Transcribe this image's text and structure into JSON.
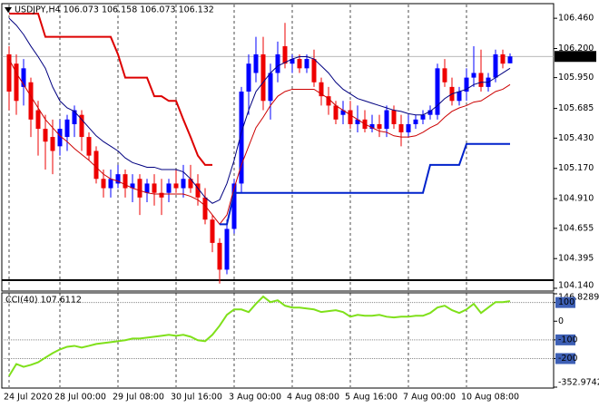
{
  "chart_data": [
    {
      "type": "candlestick",
      "title": "USDJPY,H4  106.073 106.158 106.073 106.132",
      "categories": [
        "24 Jul 2020",
        null,
        null,
        null,
        null,
        null,
        null,
        "28 Jul 00:00",
        null,
        null,
        null,
        null,
        null,
        null,
        null,
        "29 Jul 08:00",
        null,
        null,
        null,
        null,
        null,
        null,
        null,
        "30 Jul 16:00",
        null,
        null,
        null,
        null,
        null,
        null,
        null,
        "3 Aug 00:00",
        null,
        null,
        null,
        null,
        null,
        null,
        null,
        "4 Aug 08:00",
        null,
        null,
        null,
        null,
        null,
        null,
        null,
        "5 Aug 16:00",
        null,
        null,
        null,
        null,
        null,
        null,
        null,
        "7 Aug 00:00",
        null,
        null,
        null,
        null,
        null,
        null,
        null,
        "10 Aug 08:00",
        null,
        null,
        null,
        null,
        null,
        null
      ],
      "open": [
        106.15,
        106.07,
        105.87,
        105.91,
        105.67,
        105.51,
        105.44,
        105.36,
        105.44,
        105.55,
        105.63,
        105.44,
        105.32,
        105.08,
        105.0,
        105.04,
        105.12,
        105.0,
        105.08,
        104.96,
        105.04,
        104.96,
        104.96,
        105.04,
        105.0,
        105.08,
        105.04,
        104.92,
        104.73,
        104.53,
        104.3,
        104.65,
        105.04,
        105.83,
        105.99,
        106.15,
        105.75,
        105.99,
        106.22,
        106.07,
        106.11,
        106.03,
        106.11,
        105.91,
        105.79,
        105.71,
        105.63,
        105.67,
        105.55,
        105.59,
        105.51,
        105.55,
        105.51,
        105.67,
        105.55,
        105.48,
        105.55,
        105.59,
        105.63,
        105.63,
        106.03,
        105.87,
        105.75,
        105.83,
        105.95,
        105.99,
        105.87,
        105.95,
        106.15,
        106.073
      ],
      "high": [
        106.22,
        106.15,
        106.11,
        105.95,
        105.75,
        105.63,
        105.59,
        105.59,
        105.63,
        105.71,
        105.67,
        105.48,
        105.36,
        105.16,
        105.16,
        105.2,
        105.16,
        105.12,
        105.12,
        105.08,
        105.12,
        105.08,
        105.08,
        105.16,
        105.2,
        105.2,
        105.12,
        105.0,
        104.77,
        104.57,
        104.73,
        105.08,
        105.87,
        106.15,
        106.3,
        106.3,
        106.07,
        106.26,
        106.42,
        106.15,
        106.15,
        106.15,
        106.19,
        105.95,
        105.87,
        105.75,
        105.75,
        105.75,
        105.71,
        105.67,
        105.63,
        105.63,
        105.71,
        105.71,
        105.63,
        105.63,
        105.63,
        105.67,
        105.71,
        106.07,
        106.11,
        105.95,
        105.87,
        106.03,
        106.22,
        106.19,
        105.99,
        106.19,
        106.19,
        106.158
      ],
      "low": [
        105.67,
        105.63,
        105.71,
        105.44,
        105.28,
        105.16,
        105.12,
        105.28,
        105.32,
        105.44,
        105.32,
        105.24,
        105.04,
        104.92,
        104.92,
        105.0,
        104.92,
        104.88,
        104.77,
        104.88,
        104.85,
        104.77,
        104.88,
        104.96,
        104.92,
        104.96,
        104.85,
        104.69,
        104.45,
        104.18,
        104.26,
        104.61,
        104.96,
        105.63,
        105.91,
        105.67,
        105.59,
        105.91,
        106.03,
        105.99,
        105.99,
        105.99,
        105.87,
        105.71,
        105.63,
        105.55,
        105.55,
        105.51,
        105.48,
        105.48,
        105.48,
        105.44,
        105.44,
        105.51,
        105.36,
        105.44,
        105.51,
        105.55,
        105.59,
        105.59,
        105.87,
        105.71,
        105.71,
        105.75,
        105.87,
        105.83,
        105.83,
        105.91,
        106.03,
        106.073
      ],
      "close": [
        105.83,
        105.75,
        106.03,
        105.59,
        105.51,
        105.4,
        105.32,
        105.51,
        105.59,
        105.67,
        105.44,
        105.28,
        105.08,
        105.0,
        105.08,
        105.12,
        105.0,
        105.04,
        104.92,
        105.04,
        104.96,
        104.92,
        105.04,
        105.0,
        105.08,
        105.0,
        104.92,
        104.73,
        104.53,
        104.3,
        104.65,
        105.04,
        105.83,
        106.07,
        106.15,
        105.75,
        105.99,
        106.15,
        106.07,
        106.11,
        106.03,
        106.11,
        105.91,
        105.79,
        105.71,
        105.59,
        105.67,
        105.55,
        105.59,
        105.51,
        105.55,
        105.51,
        105.67,
        105.55,
        105.48,
        105.55,
        105.59,
        105.63,
        105.67,
        106.03,
        105.91,
        105.75,
        105.83,
        105.95,
        105.99,
        105.87,
        105.95,
        106.15,
        106.07,
        106.132
      ],
      "up_color": "#0000ff",
      "down_color": "#ee0000",
      "series": [
        {
          "color": "#000080",
          "values": [
            106.46,
            106.4,
            106.32,
            106.22,
            106.13,
            106.03,
            105.87,
            105.75,
            105.69,
            105.66,
            105.59,
            105.52,
            105.45,
            105.4,
            105.36,
            105.32,
            105.26,
            105.22,
            105.2,
            105.18,
            105.18,
            105.16,
            105.16,
            105.16,
            105.14,
            105.08,
            105.0,
            104.92,
            104.87,
            104.9,
            105.04,
            105.24,
            105.48,
            105.67,
            105.83,
            105.91,
            105.99,
            106.05,
            106.08,
            106.11,
            106.13,
            106.13,
            106.11,
            106.05,
            105.99,
            105.91,
            105.85,
            105.81,
            105.77,
            105.75,
            105.73,
            105.71,
            105.69,
            105.67,
            105.66,
            105.64,
            105.63,
            105.63,
            105.66,
            105.71,
            105.77,
            105.81,
            105.83,
            105.85,
            105.89,
            105.91,
            105.91,
            105.95,
            105.99,
            106.03
          ]
        },
        {
          "color": "#cc0000",
          "values": [
            106.11,
            105.99,
            105.89,
            105.79,
            105.69,
            105.59,
            105.52,
            105.45,
            105.4,
            105.34,
            105.29,
            105.24,
            105.18,
            105.12,
            105.08,
            105.06,
            105.03,
            105.0,
            104.98,
            104.96,
            104.95,
            104.95,
            104.95,
            104.95,
            104.95,
            104.93,
            104.9,
            104.85,
            104.77,
            104.69,
            104.77,
            105.0,
            105.2,
            105.36,
            105.52,
            105.61,
            105.71,
            105.79,
            105.83,
            105.85,
            105.85,
            105.85,
            105.85,
            105.81,
            105.77,
            105.71,
            105.67,
            105.63,
            105.59,
            105.55,
            105.52,
            105.49,
            105.48,
            105.45,
            105.44,
            105.44,
            105.45,
            105.48,
            105.52,
            105.55,
            105.61,
            105.66,
            105.69,
            105.71,
            105.74,
            105.75,
            105.79,
            105.83,
            105.85,
            105.89
          ]
        },
        {
          "color": "#dd0000",
          "bold": true,
          "values": [
            106.5,
            106.5,
            106.5,
            106.5,
            106.5,
            106.3,
            106.3,
            106.3,
            106.3,
            106.3,
            106.3,
            106.3,
            106.3,
            106.3,
            106.3,
            106.15,
            105.95,
            105.95,
            105.95,
            105.95,
            105.79,
            105.79,
            105.75,
            105.75,
            105.59,
            105.44,
            105.28,
            105.2,
            105.2,
            null,
            null,
            null,
            null,
            null,
            null,
            null,
            null,
            null,
            null,
            null,
            null,
            null,
            null,
            null,
            null,
            null,
            null,
            null,
            null,
            null,
            null,
            null,
            null,
            null,
            null,
            null,
            null,
            null,
            null,
            null,
            null,
            null,
            null,
            null,
            null,
            null,
            null,
            null,
            null,
            null
          ]
        },
        {
          "color": "#0022cc",
          "bold": true,
          "values": [
            null,
            null,
            null,
            null,
            null,
            null,
            null,
            null,
            null,
            null,
            null,
            null,
            null,
            null,
            null,
            null,
            null,
            null,
            null,
            null,
            null,
            null,
            null,
            null,
            null,
            null,
            null,
            null,
            null,
            104.69,
            104.69,
            104.96,
            104.96,
            104.96,
            104.96,
            104.96,
            104.96,
            104.96,
            104.96,
            104.96,
            104.96,
            104.96,
            104.96,
            104.96,
            104.96,
            104.96,
            104.96,
            104.96,
            104.96,
            104.96,
            104.96,
            104.96,
            104.96,
            104.96,
            104.96,
            104.96,
            104.96,
            104.96,
            105.2,
            105.2,
            105.2,
            105.2,
            105.2,
            105.38,
            105.38,
            105.38,
            105.38,
            105.38,
            105.38,
            105.38
          ]
        }
      ],
      "last_price": 106.132,
      "ylim": [
        104.124,
        106.578
      ],
      "yticks": [
        {
          "value": 106.46,
          "label": "106.460"
        },
        {
          "value": 106.2,
          "label": "106.200"
        },
        {
          "value": 105.95,
          "label": "105.950"
        },
        105.685,
        {
          "value": 105.43,
          "label": "105.430"
        },
        {
          "value": 105.17,
          "label": "105.170"
        },
        {
          "value": 104.91,
          "label": "104.910"
        },
        104.655,
        104.395,
        {
          "value": 104.14,
          "label": "104.140"
        }
      ],
      "grid": true
    },
    {
      "type": "line",
      "title": "CCI(40) 107.6112",
      "color": "#7fe01a",
      "values": [
        -293,
        -229,
        -244,
        -234,
        -220,
        -195,
        -171,
        -151,
        -137,
        -132,
        -141,
        -132,
        -122,
        -117,
        -112,
        -107,
        -102,
        -93,
        -93,
        -88,
        -83,
        -78,
        -73,
        -78,
        -73,
        -83,
        -102,
        -107,
        -73,
        -24,
        34,
        63,
        63,
        49,
        93,
        132,
        102,
        112,
        83,
        73,
        73,
        68,
        63,
        49,
        54,
        59,
        49,
        24,
        34,
        29,
        29,
        34,
        24,
        20,
        24,
        24,
        29,
        29,
        44,
        73,
        83,
        59,
        44,
        63,
        93,
        44,
        73,
        102,
        102,
        107.6112
      ],
      "ylim": [
        -352.9742,
        146.8289
      ],
      "yticks": [
        146.8289,
        100,
        0,
        -100,
        -200,
        -352.9742
      ],
      "levels": [
        100,
        -100,
        -200
      ]
    }
  ]
}
